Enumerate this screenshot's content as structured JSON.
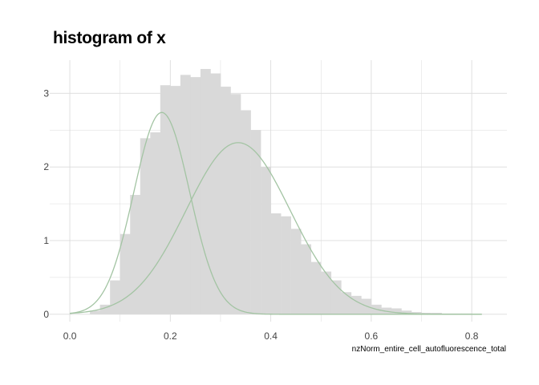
{
  "chart_data": {
    "type": "bar",
    "title": "histogram of x",
    "xlabel": "nzNorm_entire_cell_autofluorescence_total",
    "ylabel": "",
    "xlim": [
      -0.04,
      0.87
    ],
    "ylim": [
      -0.1,
      3.45
    ],
    "xticks": [
      0.0,
      0.2,
      0.4,
      0.6,
      0.8
    ],
    "xtick_labels": [
      "0.0",
      "0.2",
      "0.4",
      "0.6",
      "0.8"
    ],
    "yticks": [
      0,
      1,
      2,
      3
    ],
    "ytick_labels": [
      "0",
      "1",
      "2",
      "3"
    ],
    "grid": true,
    "legend": "none",
    "bin_width": 0.02,
    "bins": [
      {
        "x0": 0.04,
        "value": 0.05
      },
      {
        "x0": 0.06,
        "value": 0.13
      },
      {
        "x0": 0.08,
        "value": 0.46
      },
      {
        "x0": 0.1,
        "value": 1.09
      },
      {
        "x0": 0.12,
        "value": 1.62
      },
      {
        "x0": 0.14,
        "value": 2.39
      },
      {
        "x0": 0.16,
        "value": 2.47
      },
      {
        "x0": 0.18,
        "value": 3.11
      },
      {
        "x0": 0.2,
        "value": 3.1
      },
      {
        "x0": 0.22,
        "value": 3.25
      },
      {
        "x0": 0.24,
        "value": 3.22
      },
      {
        "x0": 0.26,
        "value": 3.33
      },
      {
        "x0": 0.28,
        "value": 3.27
      },
      {
        "x0": 0.3,
        "value": 3.09
      },
      {
        "x0": 0.32,
        "value": 2.99
      },
      {
        "x0": 0.34,
        "value": 2.77
      },
      {
        "x0": 0.36,
        "value": 2.5
      },
      {
        "x0": 0.38,
        "value": 2.0
      },
      {
        "x0": 0.4,
        "value": 1.37
      },
      {
        "x0": 0.42,
        "value": 1.33
      },
      {
        "x0": 0.44,
        "value": 1.16
      },
      {
        "x0": 0.46,
        "value": 0.95
      },
      {
        "x0": 0.48,
        "value": 0.71
      },
      {
        "x0": 0.5,
        "value": 0.58
      },
      {
        "x0": 0.52,
        "value": 0.46
      },
      {
        "x0": 0.54,
        "value": 0.3
      },
      {
        "x0": 0.56,
        "value": 0.25
      },
      {
        "x0": 0.58,
        "value": 0.21
      },
      {
        "x0": 0.6,
        "value": 0.13
      },
      {
        "x0": 0.62,
        "value": 0.09
      },
      {
        "x0": 0.64,
        "value": 0.08
      },
      {
        "x0": 0.66,
        "value": 0.05
      },
      {
        "x0": 0.68,
        "value": 0.03
      },
      {
        "x0": 0.7,
        "value": 0.02
      },
      {
        "x0": 0.72,
        "value": 0.02
      },
      {
        "x0": 0.74,
        "value": 0.01
      },
      {
        "x0": 0.76,
        "value": 0.01
      },
      {
        "x0": 0.78,
        "value": 0.01
      }
    ],
    "curves": [
      {
        "type": "normal-density",
        "mean": 0.183,
        "sd": 0.0555,
        "weight": 0.38,
        "peak": 2.74
      },
      {
        "type": "normal-density",
        "mean": 0.335,
        "sd": 0.1035,
        "weight": 0.61,
        "peak": 2.33
      }
    ],
    "curve_range": [
      0.0,
      0.82
    ],
    "colors": {
      "bars": "#d9d9d9",
      "curve": "#a3c4a3",
      "grid": "#dcdcdc",
      "text": "#444444",
      "title": "#000000"
    }
  }
}
